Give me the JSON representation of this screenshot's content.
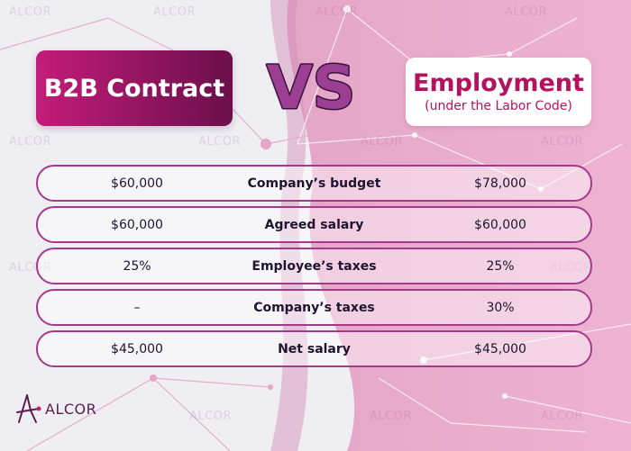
{
  "header": {
    "left_title": "B2B Contract",
    "vs_label": "VS",
    "right_title": "Employment",
    "right_subtitle": "(under the Labor Code)"
  },
  "comparison": {
    "rows": [
      {
        "left": "$60,000",
        "label": "Company’s budget",
        "right": "$78,000"
      },
      {
        "left": "$60,000",
        "label": "Agreed salary",
        "right": "$60,000"
      },
      {
        "left": "25%",
        "label": "Employee’s taxes",
        "right": "25%"
      },
      {
        "left": "–",
        "label": "Company’s taxes",
        "right": "30%"
      },
      {
        "left": "$45,000",
        "label": "Net salary",
        "right": "$45,000"
      }
    ]
  },
  "brand": {
    "name": "ALCOR",
    "watermark": "ALCOR",
    "logo_icon": "alcor-constellation-icon"
  },
  "colors": {
    "accent": "#c41c7a",
    "accent_dark": "#6b0f4a",
    "row_border": "#a53a8c",
    "pink_panel": "#e8aac9",
    "text_dark": "#1f1430"
  }
}
